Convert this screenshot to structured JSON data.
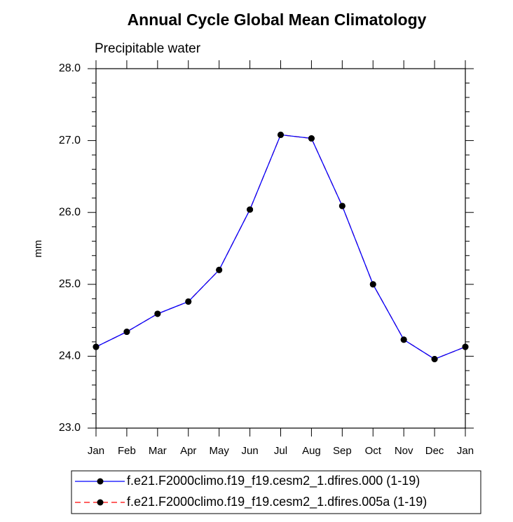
{
  "chart_data": {
    "type": "line",
    "title": "Annual Cycle Global Mean Climatology",
    "subtitle": "Precipitable water",
    "y_label": "mm",
    "categories": [
      "Jan",
      "Feb",
      "Mar",
      "Apr",
      "May",
      "Jun",
      "Jul",
      "Aug",
      "Sep",
      "Oct",
      "Nov",
      "Dec",
      "Jan"
    ],
    "series": [
      {
        "name": "f.e21.F2000climo.f19_f19.cesm2_1.dfires.000 (1-19)",
        "color": "#0000ff",
        "dash": "solid",
        "values": [
          24.13,
          24.34,
          24.59,
          24.76,
          25.2,
          26.04,
          27.08,
          27.03,
          26.09,
          25.0,
          24.23,
          23.96,
          24.13
        ]
      },
      {
        "name": "f.e21.F2000climo.f19_f19.cesm2_1.dfires.005a (1-19)",
        "color": "#ff0000",
        "dash": "dashed",
        "values": [
          24.13,
          24.34,
          24.59,
          24.76,
          25.2,
          26.04,
          27.08,
          27.03,
          26.09,
          25.0,
          24.23,
          23.96,
          24.13
        ]
      }
    ],
    "ylim": [
      23.0,
      28.0
    ],
    "yticks": [
      {
        "value": 23,
        "label": "23.0"
      },
      {
        "value": 24,
        "label": "24.0"
      },
      {
        "value": 25,
        "label": "25.0"
      },
      {
        "value": 26,
        "label": "26.0"
      },
      {
        "value": 27,
        "label": "27.0"
      },
      {
        "value": 28,
        "label": "28.0"
      }
    ],
    "grid": false,
    "legend": "bottom"
  }
}
